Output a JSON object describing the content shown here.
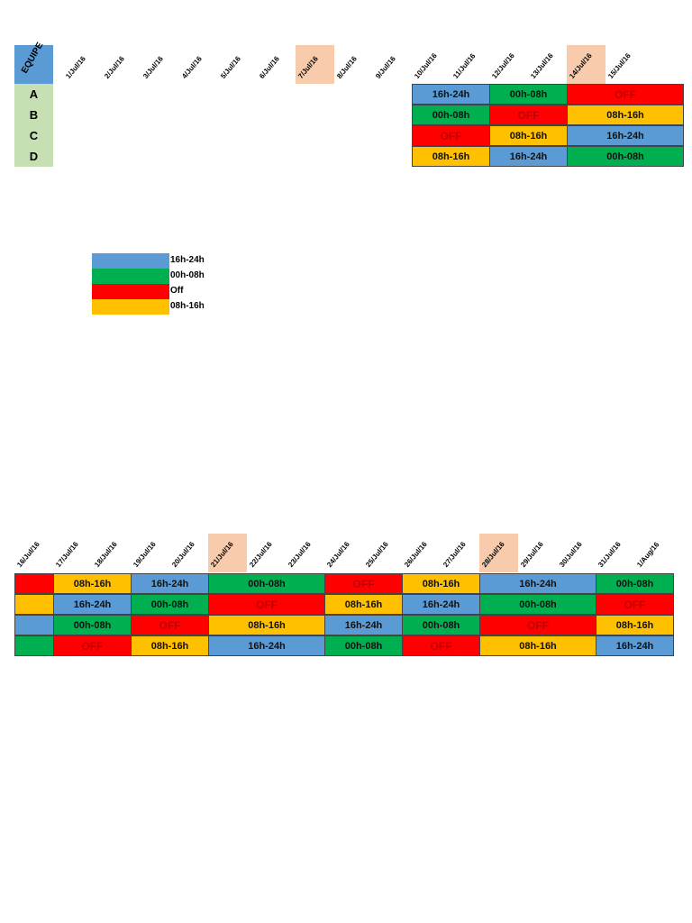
{
  "colors": {
    "16h-24h": "#5B9BD5",
    "00h-08h": "#00B050",
    "OFF": "#FF0000",
    "08h-16h": "#FFC000"
  },
  "top": {
    "equipe_label": "EQUIPE",
    "teams": [
      "A",
      "B",
      "C",
      "D"
    ],
    "dates": [
      "1/Jul/16",
      "2/Jul/16",
      "3/Jul/16",
      "4/Jul/16",
      "5/Jul/16",
      "6/Jul/16",
      "7/Jul/16",
      "8/Jul/16",
      "9/Jul/16",
      "10/Jul/16",
      "11/Jul/16",
      "12/Jul/16",
      "13/Jul/16",
      "14/Jul/16",
      "15/Jul/16"
    ],
    "highlighted": [
      6,
      13
    ],
    "rows": [
      [
        {
          "start": 9,
          "span": 2,
          "shift": "16h-24h"
        },
        {
          "start": 11,
          "span": 2,
          "shift": "00h-08h"
        },
        {
          "start": 13,
          "span": 3,
          "shift": "OFF"
        }
      ],
      [
        {
          "start": 9,
          "span": 2,
          "shift": "00h-08h"
        },
        {
          "start": 11,
          "span": 2,
          "shift": "OFF"
        },
        {
          "start": 13,
          "span": 3,
          "shift": "08h-16h"
        }
      ],
      [
        {
          "start": 9,
          "span": 2,
          "shift": "OFF"
        },
        {
          "start": 11,
          "span": 2,
          "shift": "08h-16h"
        },
        {
          "start": 13,
          "span": 3,
          "shift": "16h-24h"
        }
      ],
      [
        {
          "start": 9,
          "span": 2,
          "shift": "08h-16h"
        },
        {
          "start": 11,
          "span": 2,
          "shift": "16h-24h"
        },
        {
          "start": 13,
          "span": 3,
          "shift": "00h-08h"
        }
      ]
    ]
  },
  "legend": [
    {
      "shift": "16h-24h",
      "label": "16h-24h"
    },
    {
      "shift": "00h-08h",
      "label": "00h-08h"
    },
    {
      "shift": "OFF",
      "label": "Off"
    },
    {
      "shift": "08h-16h",
      "label": "08h-16h"
    }
  ],
  "bottom": {
    "dates": [
      "16/Jul/16",
      "17/Jul/16",
      "18/Jul/16",
      "19/Jul/16",
      "20/Jul/16",
      "21/Jul/16",
      "22/Jul/16",
      "23/Jul/16",
      "24/Jul/16",
      "25/Jul/16",
      "26/Jul/16",
      "27/Jul/16",
      "28/Jul/16",
      "29/Jul/16",
      "30/Jul/16",
      "31/Jul/16",
      "1/Aug/16"
    ],
    "highlighted": [
      5,
      12
    ],
    "rows": [
      [
        {
          "start": 0,
          "span": 1,
          "shift": "OFF",
          "hide": true
        },
        {
          "start": 1,
          "span": 2,
          "shift": "08h-16h"
        },
        {
          "start": 3,
          "span": 2,
          "shift": "16h-24h"
        },
        {
          "start": 5,
          "span": 3,
          "shift": "00h-08h"
        },
        {
          "start": 8,
          "span": 2,
          "shift": "OFF"
        },
        {
          "start": 10,
          "span": 2,
          "shift": "08h-16h"
        },
        {
          "start": 12,
          "span": 3,
          "shift": "16h-24h"
        },
        {
          "start": 15,
          "span": 2,
          "shift": "00h-08h"
        }
      ],
      [
        {
          "start": 0,
          "span": 1,
          "shift": "08h-16h",
          "hide": true
        },
        {
          "start": 1,
          "span": 2,
          "shift": "16h-24h"
        },
        {
          "start": 3,
          "span": 2,
          "shift": "00h-08h"
        },
        {
          "start": 5,
          "span": 3,
          "shift": "OFF"
        },
        {
          "start": 8,
          "span": 2,
          "shift": "08h-16h"
        },
        {
          "start": 10,
          "span": 2,
          "shift": "16h-24h"
        },
        {
          "start": 12,
          "span": 3,
          "shift": "00h-08h"
        },
        {
          "start": 15,
          "span": 2,
          "shift": "OFF"
        }
      ],
      [
        {
          "start": 0,
          "span": 1,
          "shift": "16h-24h",
          "hide": true
        },
        {
          "start": 1,
          "span": 2,
          "shift": "00h-08h"
        },
        {
          "start": 3,
          "span": 2,
          "shift": "OFF"
        },
        {
          "start": 5,
          "span": 3,
          "shift": "08h-16h"
        },
        {
          "start": 8,
          "span": 2,
          "shift": "16h-24h"
        },
        {
          "start": 10,
          "span": 2,
          "shift": "00h-08h"
        },
        {
          "start": 12,
          "span": 3,
          "shift": "OFF"
        },
        {
          "start": 15,
          "span": 2,
          "shift": "08h-16h"
        }
      ],
      [
        {
          "start": 0,
          "span": 1,
          "shift": "00h-08h",
          "hide": true
        },
        {
          "start": 1,
          "span": 2,
          "shift": "OFF"
        },
        {
          "start": 3,
          "span": 2,
          "shift": "08h-16h"
        },
        {
          "start": 5,
          "span": 3,
          "shift": "16h-24h"
        },
        {
          "start": 8,
          "span": 2,
          "shift": "00h-08h"
        },
        {
          "start": 10,
          "span": 2,
          "shift": "OFF"
        },
        {
          "start": 12,
          "span": 3,
          "shift": "08h-16h"
        },
        {
          "start": 15,
          "span": 2,
          "shift": "16h-24h"
        }
      ]
    ]
  }
}
